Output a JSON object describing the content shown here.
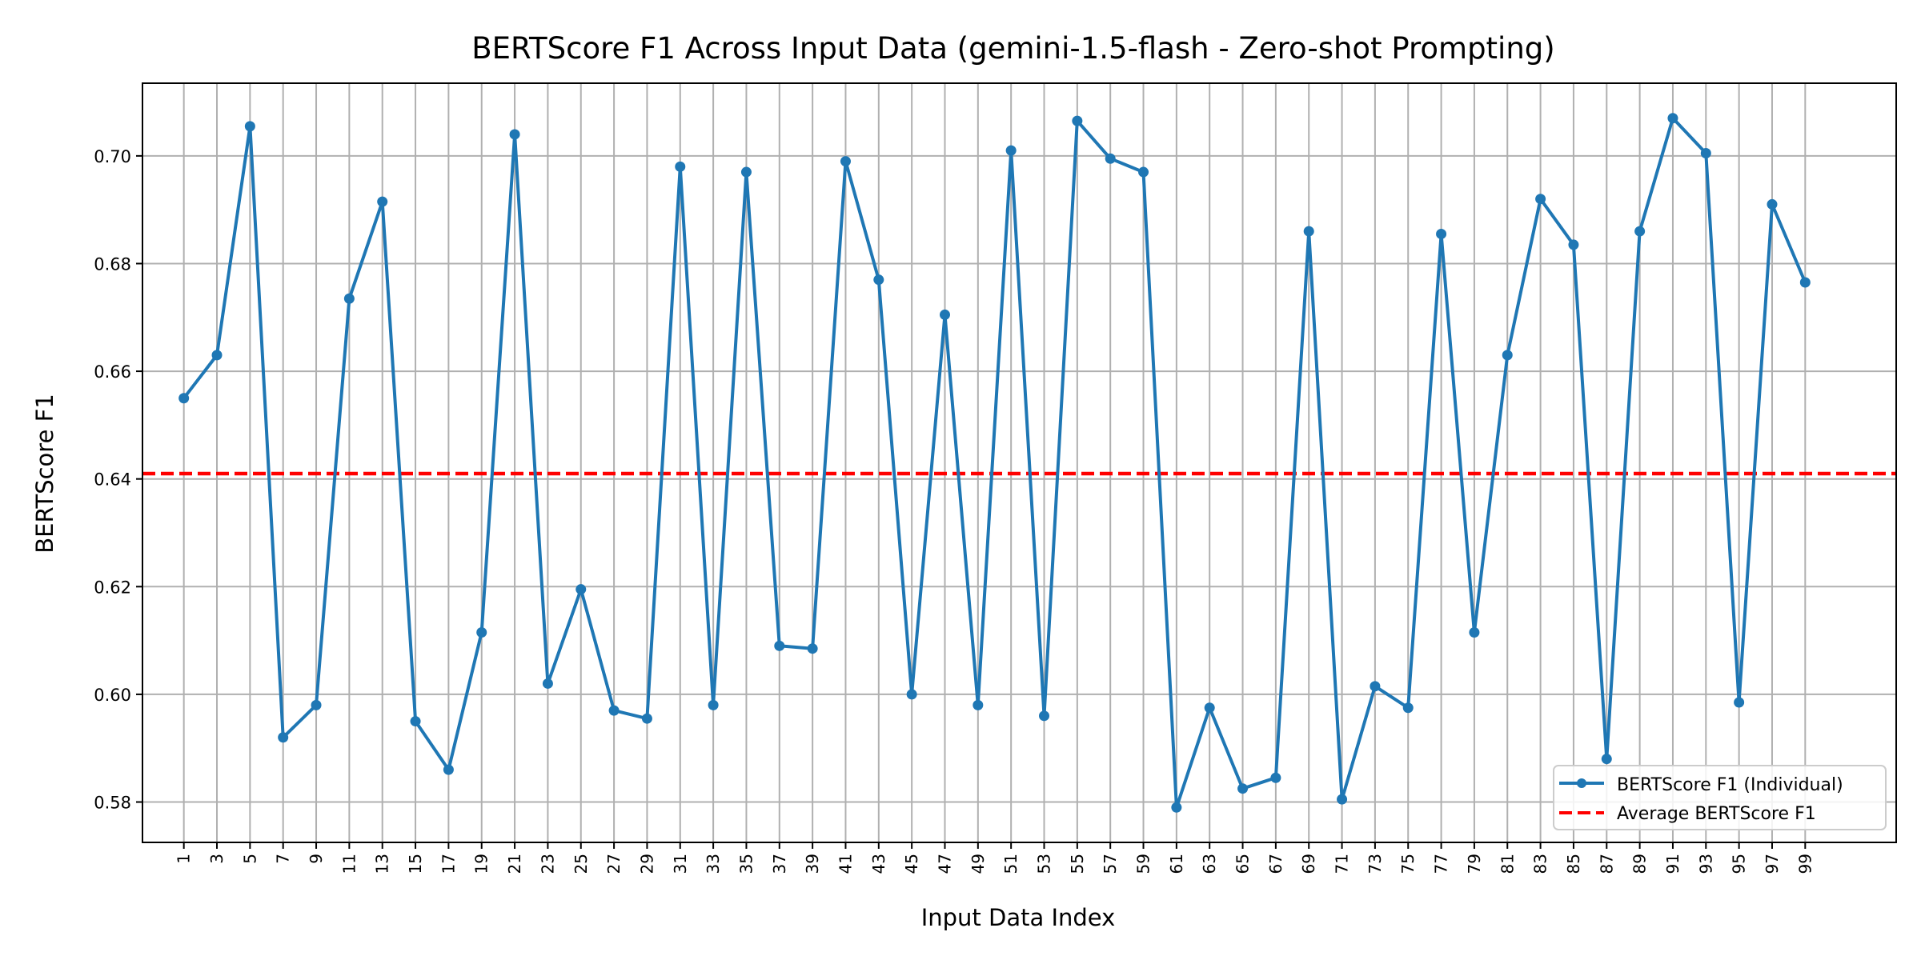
{
  "chart_data": {
    "type": "line",
    "title": "BERTScore F1 Across Input Data (gemini-1.5-flash - Zero-shot Prompting)",
    "xlabel": "Input Data Index",
    "ylabel": "BERTScore F1",
    "x": [
      1,
      3,
      5,
      7,
      9,
      11,
      13,
      15,
      17,
      19,
      21,
      23,
      25,
      27,
      29,
      31,
      33,
      35,
      37,
      39,
      41,
      43,
      45,
      47,
      49,
      51,
      53,
      55,
      57,
      59,
      61,
      63,
      65,
      67,
      69,
      71,
      73,
      75,
      77,
      79,
      81,
      83,
      85,
      87,
      89,
      91,
      93,
      95,
      97,
      99
    ],
    "xlim": [
      -1.5,
      104.5
    ],
    "ylim": [
      0.5725,
      0.7135
    ],
    "yticks": [
      "0.58",
      "0.60",
      "0.62",
      "0.64",
      "0.66",
      "0.68",
      "0.70"
    ],
    "grid": true,
    "legend_position": "bottom-right",
    "series": [
      {
        "name": "BERTScore F1 (Individual)",
        "color": "#1f77b4",
        "style": "solid-with-markers",
        "values": [
          0.655,
          0.663,
          0.7055,
          0.592,
          0.598,
          0.6735,
          0.6915,
          0.595,
          0.586,
          0.6115,
          0.704,
          0.602,
          0.6195,
          0.597,
          0.5955,
          0.698,
          0.598,
          0.697,
          0.609,
          0.6085,
          0.699,
          0.677,
          0.6,
          0.6705,
          0.598,
          0.701,
          0.596,
          0.7065,
          0.6995,
          0.697,
          0.579,
          0.5975,
          0.5825,
          0.5845,
          0.686,
          0.5805,
          0.6015,
          0.5975,
          0.6855,
          0.6115,
          0.663,
          0.692,
          0.6835,
          0.588,
          0.686,
          0.707,
          0.7005,
          0.5985,
          0.691,
          0.6765
        ]
      },
      {
        "name": "Average BERTScore F1",
        "color": "#ff0000",
        "style": "dashed",
        "value": 0.641
      }
    ]
  }
}
